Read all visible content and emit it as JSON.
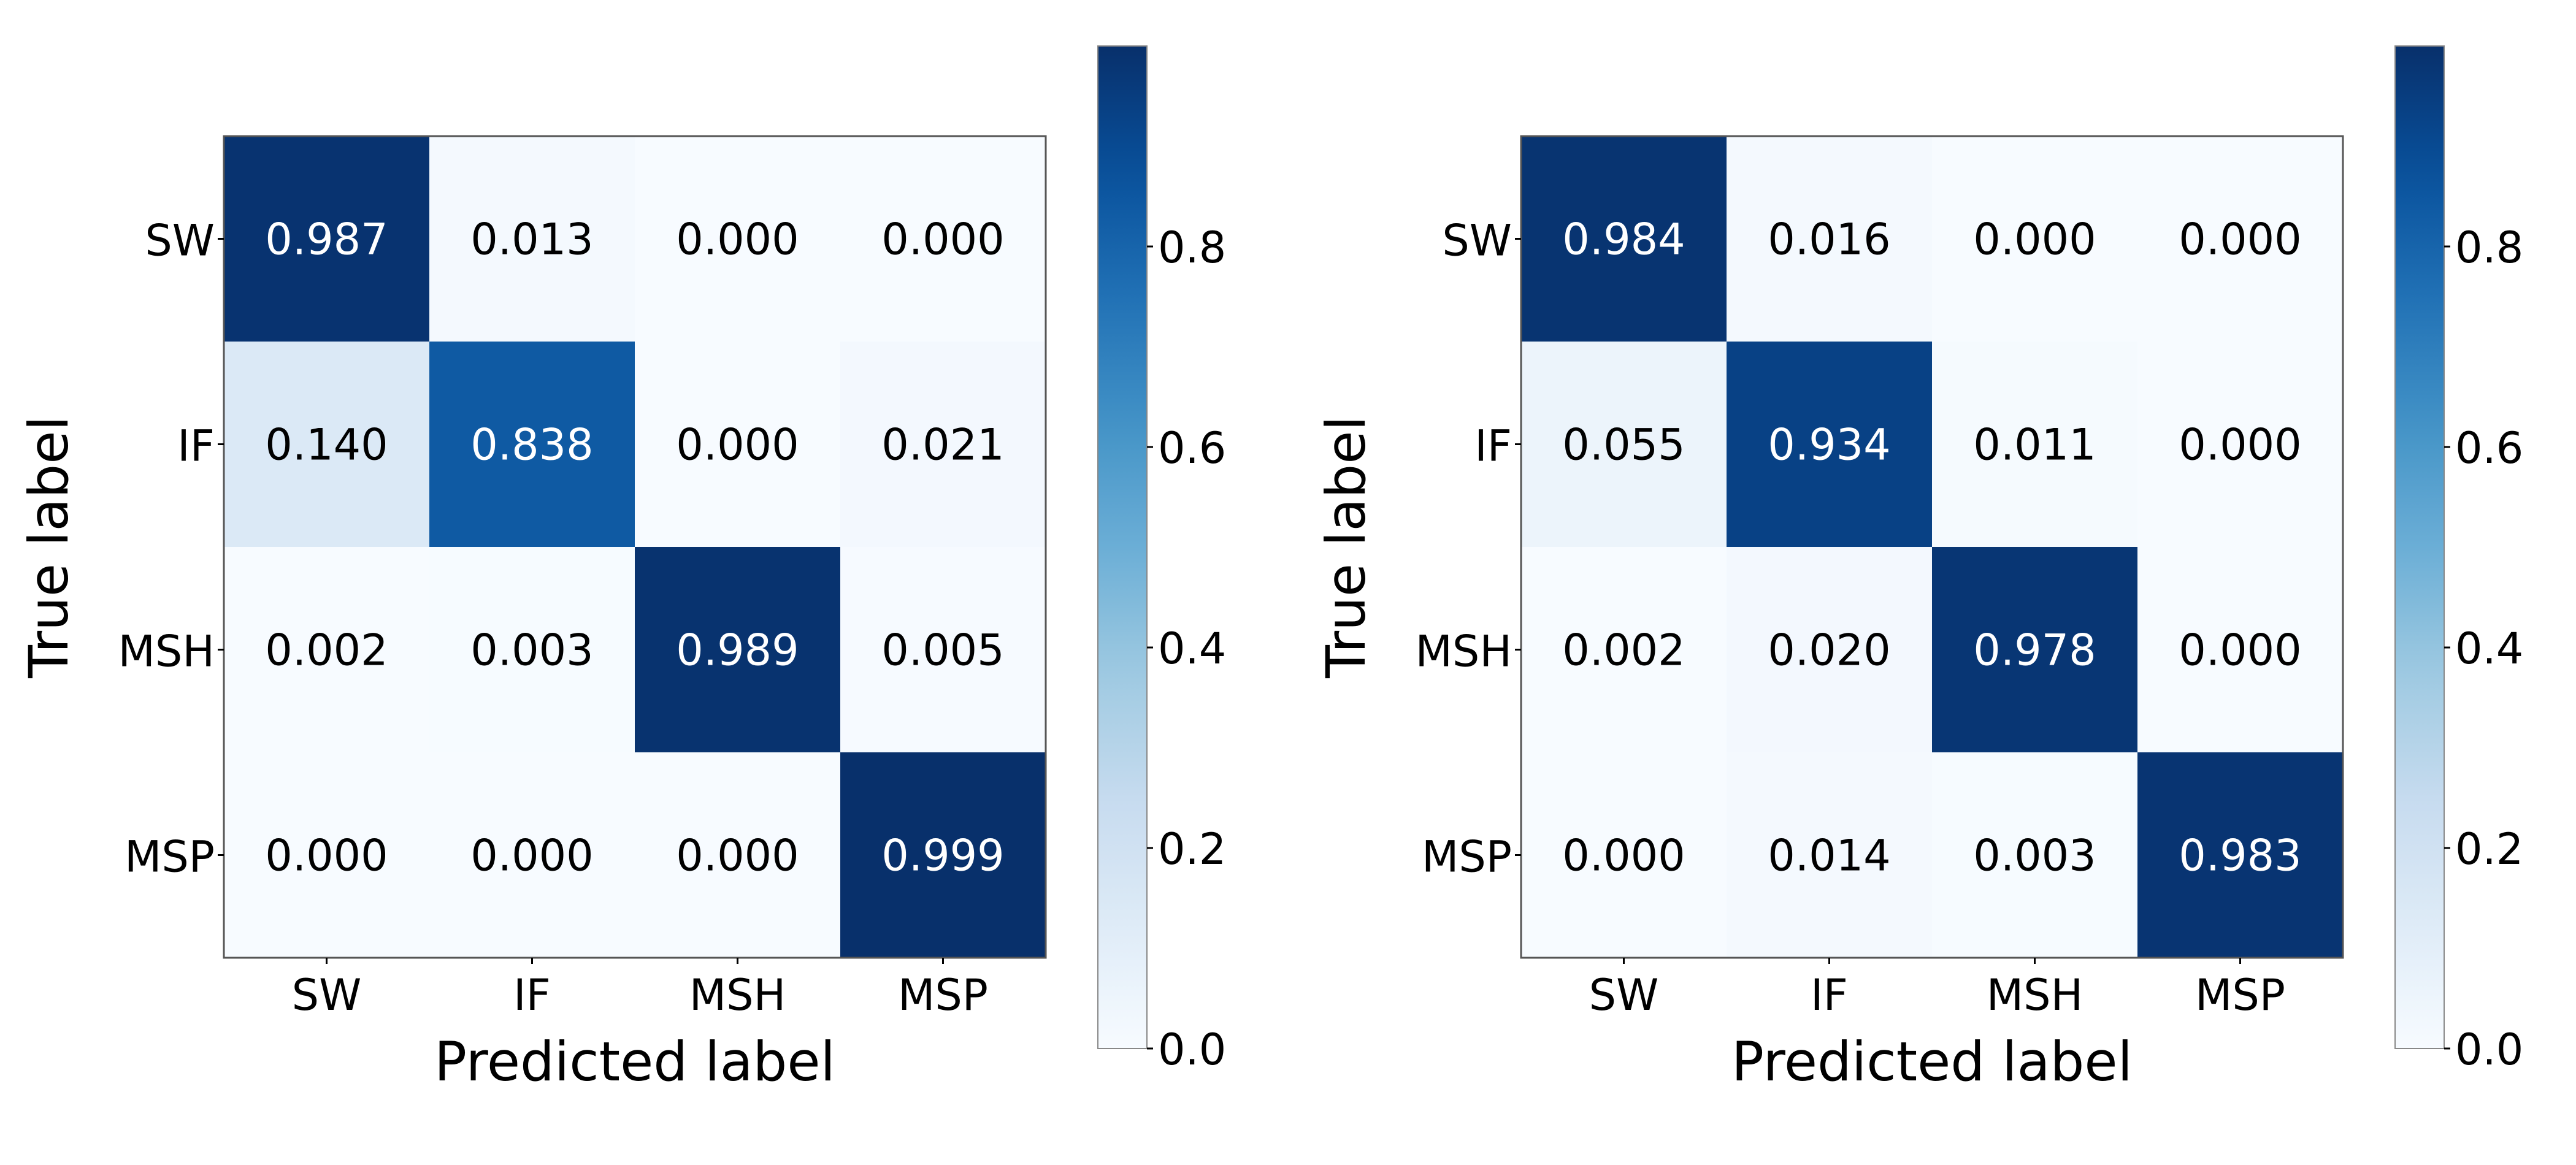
{
  "chart_data": [
    {
      "type": "heatmap",
      "title": "",
      "xlabel": "Predicted label",
      "ylabel": "True label",
      "x_categories": [
        "SW",
        "IF",
        "MSH",
        "MSP"
      ],
      "y_categories": [
        "SW",
        "IF",
        "MSH",
        "MSP"
      ],
      "values": [
        [
          0.987,
          0.013,
          0.0,
          0.0
        ],
        [
          0.14,
          0.838,
          0.0,
          0.021
        ],
        [
          0.002,
          0.003,
          0.989,
          0.005
        ],
        [
          0.0,
          0.0,
          0.0,
          0.999
        ]
      ],
      "colorbar": {
        "range": [
          0.0,
          1.0
        ],
        "ticks": [
          "0.0",
          "0.2",
          "0.4",
          "0.6",
          "0.8"
        ],
        "tick_values": [
          0.0,
          0.2,
          0.4,
          0.6,
          0.8
        ]
      },
      "colormap": "Blues"
    },
    {
      "type": "heatmap",
      "title": "",
      "xlabel": "Predicted label",
      "ylabel": "True label",
      "x_categories": [
        "SW",
        "IF",
        "MSH",
        "MSP"
      ],
      "y_categories": [
        "SW",
        "IF",
        "MSH",
        "MSP"
      ],
      "values": [
        [
          0.984,
          0.016,
          0.0,
          0.0
        ],
        [
          0.055,
          0.934,
          0.011,
          0.0
        ],
        [
          0.002,
          0.02,
          0.978,
          0.0
        ],
        [
          0.0,
          0.014,
          0.003,
          0.983
        ]
      ],
      "colorbar": {
        "range": [
          0.0,
          1.0
        ],
        "ticks": [
          "0.0",
          "0.2",
          "0.4",
          "0.6",
          "0.8"
        ],
        "tick_values": [
          0.0,
          0.2,
          0.4,
          0.6,
          0.8
        ]
      },
      "colormap": "Blues"
    }
  ]
}
